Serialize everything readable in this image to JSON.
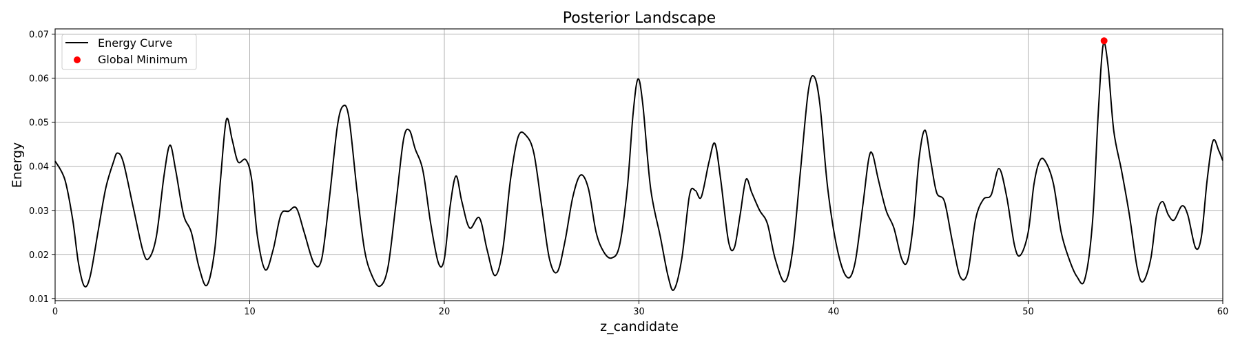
{
  "chart_data": {
    "type": "line",
    "title": "Posterior Landscape",
    "xlabel": "z_candidate",
    "ylabel": "Energy",
    "xlim": [
      0,
      60
    ],
    "ylim": [
      0.0095,
      0.0712
    ],
    "xticks": [
      0,
      10,
      20,
      30,
      40,
      50,
      60
    ],
    "yticks": [
      0.01,
      0.02,
      0.03,
      0.04,
      0.05,
      0.06,
      0.07
    ],
    "xtick_labels": [
      "0",
      "10",
      "20",
      "30",
      "40",
      "50",
      "60"
    ],
    "ytick_labels": [
      "0.01",
      "0.02",
      "0.03",
      "0.04",
      "0.05",
      "0.06",
      "0.07"
    ],
    "grid": true,
    "legend_position": "top-left",
    "series": [
      {
        "name": "Energy Curve",
        "color": "#000000",
        "points": [
          [
            0.0,
            0.0412
          ],
          [
            0.5,
            0.037
          ],
          [
            0.9,
            0.028
          ],
          [
            1.2,
            0.018
          ],
          [
            1.5,
            0.0128
          ],
          [
            1.8,
            0.015
          ],
          [
            2.2,
            0.025
          ],
          [
            2.6,
            0.035
          ],
          [
            3.0,
            0.041
          ],
          [
            3.2,
            0.043
          ],
          [
            3.5,
            0.041
          ],
          [
            4.0,
            0.031
          ],
          [
            4.5,
            0.021
          ],
          [
            4.8,
            0.019
          ],
          [
            5.2,
            0.024
          ],
          [
            5.6,
            0.038
          ],
          [
            5.9,
            0.0448
          ],
          [
            6.2,
            0.039
          ],
          [
            6.6,
            0.029
          ],
          [
            7.0,
            0.025
          ],
          [
            7.4,
            0.017
          ],
          [
            7.8,
            0.013
          ],
          [
            8.2,
            0.021
          ],
          [
            8.5,
            0.037
          ],
          [
            8.8,
            0.0506
          ],
          [
            9.1,
            0.046
          ],
          [
            9.4,
            0.041
          ],
          [
            9.8,
            0.0415
          ],
          [
            10.1,
            0.037
          ],
          [
            10.4,
            0.024
          ],
          [
            10.8,
            0.0165
          ],
          [
            11.2,
            0.021
          ],
          [
            11.6,
            0.029
          ],
          [
            12.0,
            0.0298
          ],
          [
            12.4,
            0.0305
          ],
          [
            12.8,
            0.025
          ],
          [
            13.3,
            0.018
          ],
          [
            13.7,
            0.019
          ],
          [
            14.1,
            0.033
          ],
          [
            14.5,
            0.049
          ],
          [
            14.8,
            0.0537
          ],
          [
            15.1,
            0.051
          ],
          [
            15.5,
            0.035
          ],
          [
            15.9,
            0.021
          ],
          [
            16.3,
            0.015
          ],
          [
            16.7,
            0.0128
          ],
          [
            17.1,
            0.017
          ],
          [
            17.5,
            0.031
          ],
          [
            17.9,
            0.046
          ],
          [
            18.2,
            0.0482
          ],
          [
            18.5,
            0.044
          ],
          [
            18.9,
            0.039
          ],
          [
            19.3,
            0.027
          ],
          [
            19.7,
            0.018
          ],
          [
            20.0,
            0.019
          ],
          [
            20.3,
            0.031
          ],
          [
            20.6,
            0.0378
          ],
          [
            20.9,
            0.032
          ],
          [
            21.3,
            0.026
          ],
          [
            21.8,
            0.0283
          ],
          [
            22.2,
            0.021
          ],
          [
            22.6,
            0.0152
          ],
          [
            23.0,
            0.021
          ],
          [
            23.4,
            0.037
          ],
          [
            23.8,
            0.0468
          ],
          [
            24.2,
            0.047
          ],
          [
            24.6,
            0.043
          ],
          [
            25.0,
            0.031
          ],
          [
            25.4,
            0.019
          ],
          [
            25.8,
            0.016
          ],
          [
            26.2,
            0.023
          ],
          [
            26.6,
            0.033
          ],
          [
            27.0,
            0.038
          ],
          [
            27.4,
            0.035
          ],
          [
            27.8,
            0.025
          ],
          [
            28.2,
            0.0205
          ],
          [
            28.6,
            0.0192
          ],
          [
            29.0,
            0.022
          ],
          [
            29.4,
            0.035
          ],
          [
            29.7,
            0.052
          ],
          [
            29.95,
            0.0598
          ],
          [
            30.2,
            0.054
          ],
          [
            30.6,
            0.035
          ],
          [
            31.1,
            0.024
          ],
          [
            31.5,
            0.015
          ],
          [
            31.8,
            0.012
          ],
          [
            32.2,
            0.019
          ],
          [
            32.6,
            0.0335
          ],
          [
            32.9,
            0.0345
          ],
          [
            33.2,
            0.033
          ],
          [
            33.6,
            0.041
          ],
          [
            33.9,
            0.0452
          ],
          [
            34.2,
            0.037
          ],
          [
            34.6,
            0.023
          ],
          [
            34.9,
            0.0215
          ],
          [
            35.2,
            0.029
          ],
          [
            35.5,
            0.037
          ],
          [
            35.8,
            0.034
          ],
          [
            36.2,
            0.03
          ],
          [
            36.6,
            0.027
          ],
          [
            37.0,
            0.019
          ],
          [
            37.5,
            0.0138
          ],
          [
            37.9,
            0.021
          ],
          [
            38.3,
            0.039
          ],
          [
            38.7,
            0.057
          ],
          [
            39.0,
            0.0604
          ],
          [
            39.3,
            0.054
          ],
          [
            39.7,
            0.035
          ],
          [
            40.2,
            0.021
          ],
          [
            40.7,
            0.0148
          ],
          [
            41.1,
            0.018
          ],
          [
            41.5,
            0.031
          ],
          [
            41.8,
            0.0415
          ],
          [
            42.0,
            0.0428
          ],
          [
            42.3,
            0.037
          ],
          [
            42.7,
            0.03
          ],
          [
            43.1,
            0.026
          ],
          [
            43.5,
            0.019
          ],
          [
            43.8,
            0.0185
          ],
          [
            44.1,
            0.027
          ],
          [
            44.4,
            0.042
          ],
          [
            44.7,
            0.0482
          ],
          [
            45.0,
            0.041
          ],
          [
            45.3,
            0.034
          ],
          [
            45.7,
            0.032
          ],
          [
            46.1,
            0.023
          ],
          [
            46.5,
            0.015
          ],
          [
            46.9,
            0.016
          ],
          [
            47.3,
            0.028
          ],
          [
            47.7,
            0.0325
          ],
          [
            48.1,
            0.0335
          ],
          [
            48.5,
            0.0395
          ],
          [
            48.9,
            0.033
          ],
          [
            49.3,
            0.022
          ],
          [
            49.6,
            0.0198
          ],
          [
            50.0,
            0.025
          ],
          [
            50.3,
            0.036
          ],
          [
            50.6,
            0.0413
          ],
          [
            50.9,
            0.041
          ],
          [
            51.3,
            0.036
          ],
          [
            51.7,
            0.025
          ],
          [
            52.1,
            0.019
          ],
          [
            52.5,
            0.015
          ],
          [
            52.9,
            0.0142
          ],
          [
            53.3,
            0.027
          ],
          [
            53.6,
            0.052
          ],
          [
            53.85,
            0.0675
          ],
          [
            54.1,
            0.063
          ],
          [
            54.4,
            0.048
          ],
          [
            54.8,
            0.039
          ],
          [
            55.2,
            0.029
          ],
          [
            55.6,
            0.017
          ],
          [
            55.9,
            0.0138
          ],
          [
            56.3,
            0.019
          ],
          [
            56.6,
            0.029
          ],
          [
            56.9,
            0.032
          ],
          [
            57.2,
            0.029
          ],
          [
            57.5,
            0.0278
          ],
          [
            57.9,
            0.031
          ],
          [
            58.2,
            0.029
          ],
          [
            58.6,
            0.0215
          ],
          [
            58.9,
            0.024
          ],
          [
            59.2,
            0.037
          ],
          [
            59.5,
            0.0458
          ],
          [
            59.8,
            0.0435
          ],
          [
            60.0,
            0.0413
          ]
        ]
      },
      {
        "name": "Global Minimum",
        "color": "#ff0000",
        "marker": "circle",
        "points": [
          [
            53.9,
            0.0685
          ]
        ]
      }
    ]
  }
}
